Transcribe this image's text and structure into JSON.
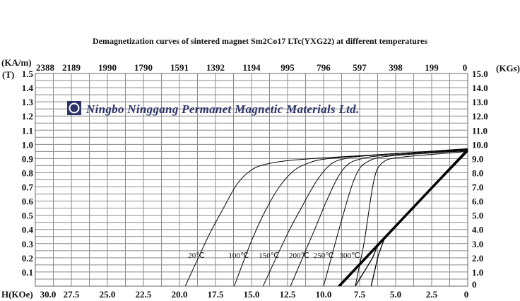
{
  "chart_data": {
    "type": "line",
    "title": "Demagnetization curves of sintered magnet  Sm2Co17  LTc(YXG22) at different temperatures",
    "watermark": "Ningbo Ninggang Permanet Magnetic Materials Ltd.",
    "xlabel": "H(KOe)",
    "ylabel_top": "(KA/m)",
    "ylabel": "(T)",
    "y2label": "(KGs)",
    "xlim": [
      30,
      0
    ],
    "ylim": [
      0,
      1.5
    ],
    "grid": true,
    "x_ticks": [
      "30.0",
      "27.5",
      "25.0",
      "22.5",
      "20.0",
      "17.5",
      "15.0",
      "12.5",
      "10.0",
      "7.5",
      "5.0",
      "2.5",
      "0"
    ],
    "x_tick_values": [
      30,
      27.5,
      25,
      22.5,
      20,
      17.5,
      15,
      12.5,
      10,
      7.5,
      5,
      2.5,
      0
    ],
    "top_ticks": [
      "2388",
      "2189",
      "1990",
      "1790",
      "1591",
      "1392",
      "1194",
      "995",
      "796",
      "597",
      "398",
      "199",
      "0"
    ],
    "y_ticks": [
      "1.5",
      "1.4",
      "1.3",
      "1.2",
      "1.1",
      "1.0",
      "0.9",
      "0.8",
      "0.7",
      "0.6",
      "0.5",
      "0.4",
      "0.3",
      "0.2",
      "0.1"
    ],
    "y_tick_values": [
      1.5,
      1.4,
      1.3,
      1.2,
      1.1,
      1.0,
      0.9,
      0.8,
      0.7,
      0.6,
      0.5,
      0.4,
      0.3,
      0.2,
      0.1
    ],
    "y2_ticks": [
      "15.0",
      "14.0",
      "13.0",
      "12.0",
      "11.0",
      "10.0",
      "9.0",
      "8.0",
      "7.0",
      "6.0",
      "5.0",
      "4.0",
      "3.0",
      "2.0",
      "1.0",
      "0"
    ],
    "y2_tick_values": [
      1.5,
      1.4,
      1.3,
      1.2,
      1.1,
      1.0,
      0.9,
      0.8,
      0.7,
      0.6,
      0.5,
      0.4,
      0.3,
      0.2,
      0.1,
      0
    ],
    "intrinsic_series": [
      {
        "name": "20℃",
        "label_at": [
          19.4,
          0.22
        ],
        "points": [
          [
            0,
            0.97
          ],
          [
            5,
            0.935
          ],
          [
            10,
            0.905
          ],
          [
            12.5,
            0.885
          ],
          [
            14,
            0.86
          ],
          [
            15,
            0.82
          ],
          [
            16,
            0.72
          ],
          [
            17,
            0.54
          ],
          [
            18,
            0.35
          ],
          [
            19.6,
            0
          ]
        ]
      },
      {
        "name": "100℃",
        "label_at": [
          16.6,
          0.22
        ],
        "points": [
          [
            0,
            0.965
          ],
          [
            5,
            0.935
          ],
          [
            8,
            0.915
          ],
          [
            10,
            0.895
          ],
          [
            11,
            0.87
          ],
          [
            12,
            0.82
          ],
          [
            13,
            0.71
          ],
          [
            14,
            0.54
          ],
          [
            15,
            0.32
          ],
          [
            16.2,
            0
          ]
        ]
      },
      {
        "name": "150℃",
        "label_at": [
          14.5,
          0.22
        ],
        "points": [
          [
            0,
            0.965
          ],
          [
            5,
            0.935
          ],
          [
            7.5,
            0.915
          ],
          [
            8.5,
            0.9
          ],
          [
            9.5,
            0.86
          ],
          [
            10.5,
            0.74
          ],
          [
            11.5,
            0.56
          ],
          [
            12.5,
            0.37
          ],
          [
            14.2,
            0
          ]
        ]
      },
      {
        "name": "200℃",
        "label_at": [
          12.4,
          0.22
        ],
        "points": [
          [
            0,
            0.96
          ],
          [
            4,
            0.935
          ],
          [
            6.5,
            0.915
          ],
          [
            7.5,
            0.895
          ],
          [
            8.3,
            0.86
          ],
          [
            9,
            0.77
          ],
          [
            9.8,
            0.6
          ],
          [
            10.7,
            0.38
          ],
          [
            12.3,
            0
          ]
        ]
      },
      {
        "name": "250℃",
        "label_at": [
          10.7,
          0.22
        ],
        "points": [
          [
            0,
            0.955
          ],
          [
            4,
            0.93
          ],
          [
            6,
            0.91
          ],
          [
            6.9,
            0.88
          ],
          [
            7.5,
            0.83
          ],
          [
            8,
            0.72
          ],
          [
            8.6,
            0.52
          ],
          [
            9.2,
            0.3
          ],
          [
            10.0,
            0
          ]
        ]
      },
      {
        "name": "300℃",
        "label_at": [
          8.9,
          0.22
        ],
        "points": [
          [
            0,
            0.95
          ],
          [
            3,
            0.925
          ],
          [
            5,
            0.905
          ],
          [
            5.8,
            0.88
          ],
          [
            6.3,
            0.82
          ],
          [
            6.6,
            0.7
          ],
          [
            6.9,
            0.5
          ],
          [
            7.2,
            0.3
          ],
          [
            7.5,
            0.15
          ],
          [
            7.8,
            0
          ]
        ]
      }
    ],
    "normal_series": [
      {
        "name": "normal-20",
        "points": [
          [
            0,
            0.97
          ],
          [
            9.0,
            0
          ]
        ]
      },
      {
        "name": "normal-100",
        "points": [
          [
            0,
            0.965
          ],
          [
            8.95,
            0
          ]
        ]
      },
      {
        "name": "normal-150",
        "points": [
          [
            0,
            0.96
          ],
          [
            8.9,
            0
          ]
        ]
      },
      {
        "name": "normal-200",
        "points": [
          [
            0,
            0.955
          ],
          [
            8.85,
            0
          ]
        ]
      },
      {
        "name": "normal-250",
        "points": [
          [
            0,
            0.955
          ],
          [
            5.5,
            0.37
          ],
          [
            6.2,
            0.3
          ],
          [
            6.6,
            0.2
          ],
          [
            7.8,
            0
          ]
        ]
      },
      {
        "name": "normal-300",
        "points": [
          [
            0,
            0.95
          ],
          [
            5.2,
            0.4
          ],
          [
            5.8,
            0.33
          ],
          [
            6.2,
            0.22
          ],
          [
            6.7,
            0
          ]
        ]
      }
    ]
  }
}
